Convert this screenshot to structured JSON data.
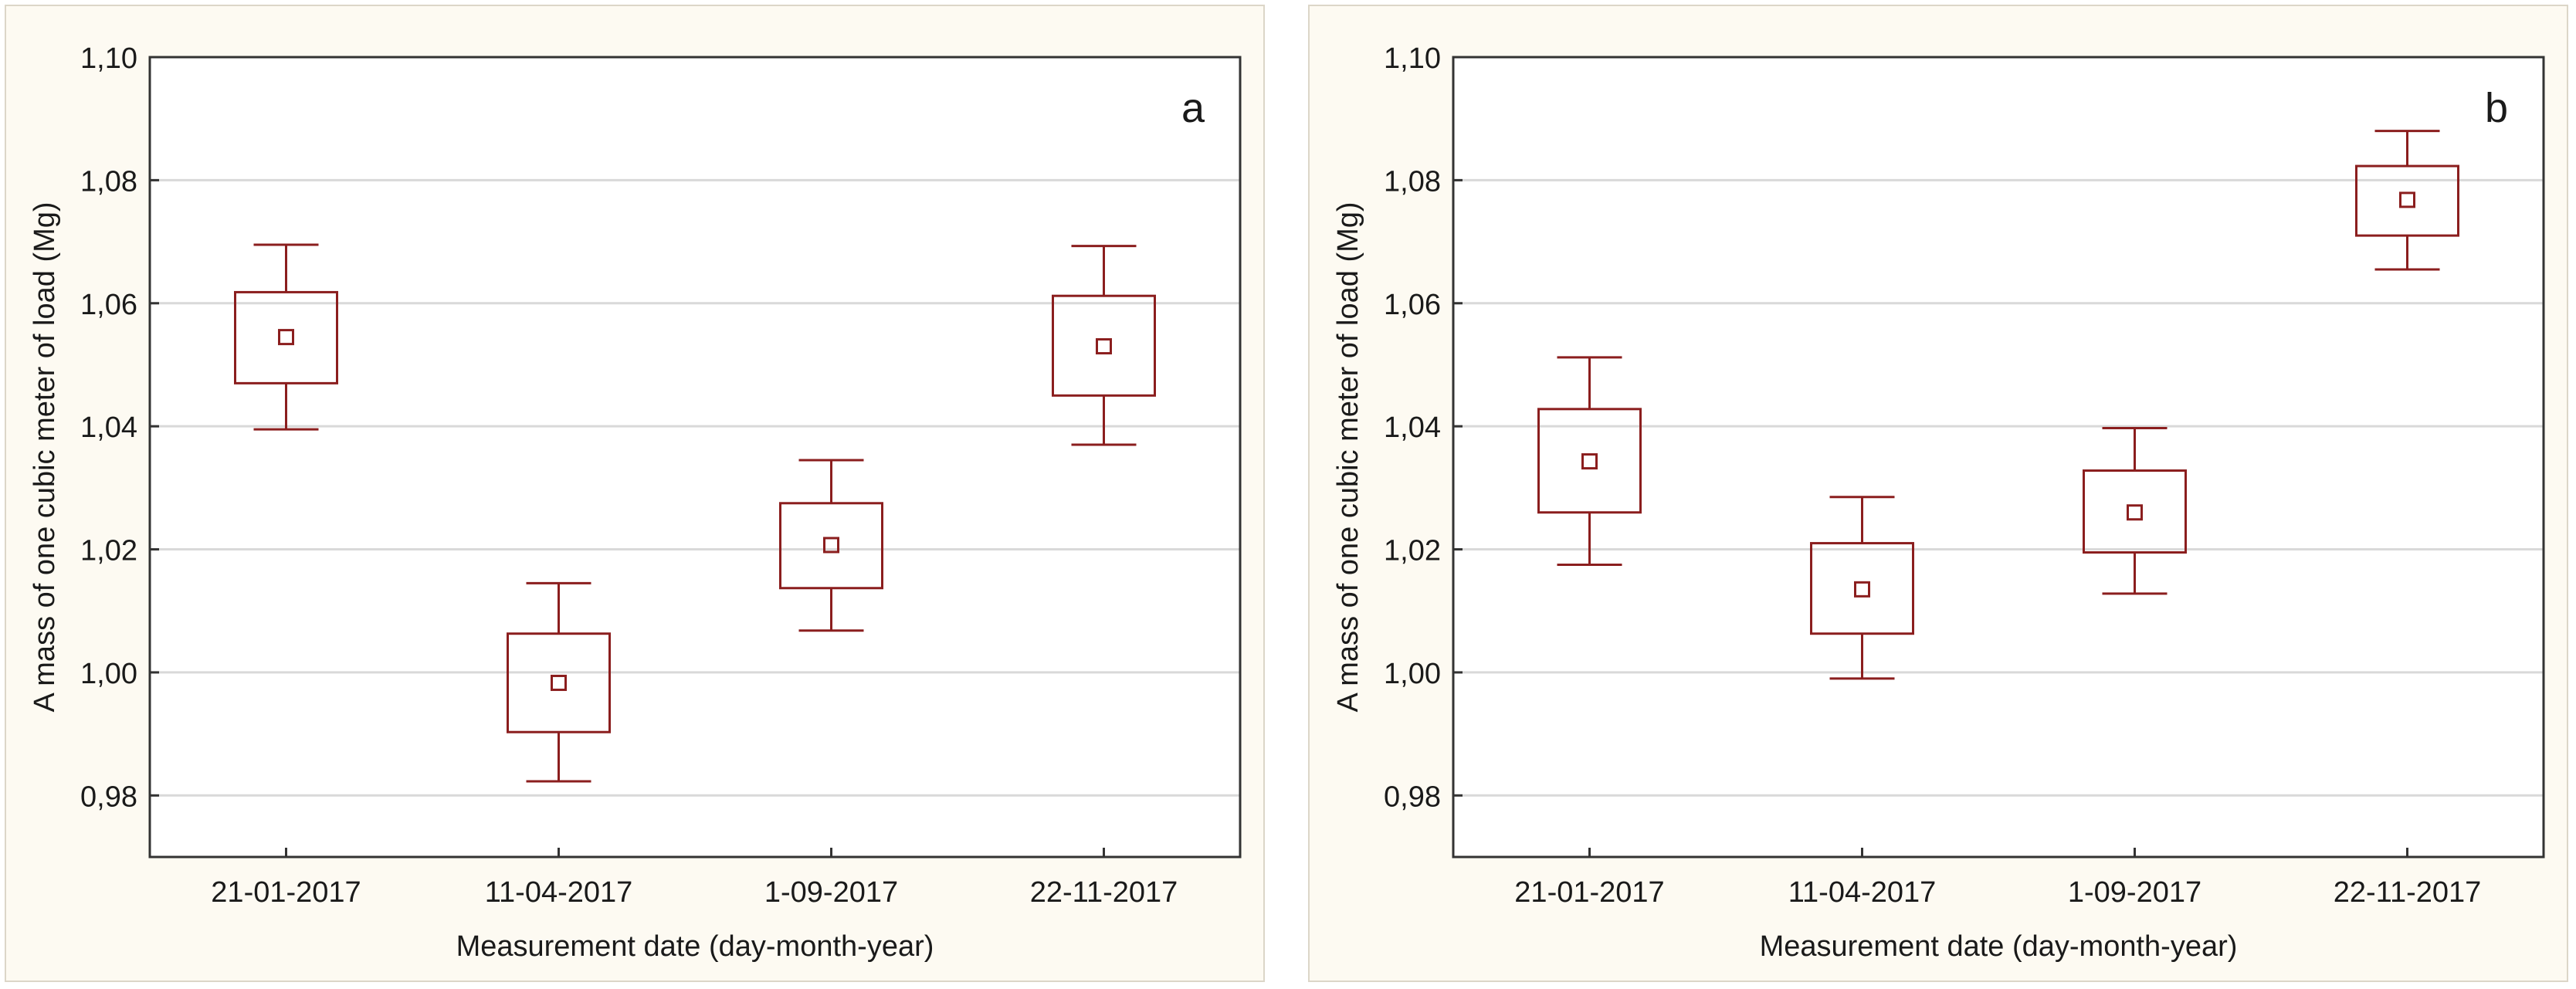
{
  "colors": {
    "box": "#8b1e1e",
    "grid": "#d9d9d9",
    "axis": "#333333",
    "plot_bg": "#ffffff",
    "panel_bg": "#fdfaf2"
  },
  "chart_data": [
    {
      "type": "box",
      "panel_label": "a",
      "xlabel": "Measurement date (day-month-year)",
      "ylabel": "A mass of one cubic meter of load (Mg)",
      "ylim": [
        0.97,
        1.1
      ],
      "yticks": [
        0.98,
        1.0,
        1.02,
        1.04,
        1.06,
        1.08,
        1.1
      ],
      "ytick_labels": [
        "0,98",
        "1,00",
        "1,02",
        "1,04",
        "1,06",
        "1,08",
        "1,10"
      ],
      "grid": true,
      "categories": [
        "21-01-2017",
        "11-04-2017",
        "1-09-2017",
        "22-11-2017"
      ],
      "boxes": [
        {
          "mean": 1.0545,
          "box_low": 1.047,
          "box_high": 1.0618,
          "whisker_low": 1.0395,
          "whisker_high": 1.0695
        },
        {
          "mean": 0.9983,
          "box_low": 0.9903,
          "box_high": 1.0063,
          "whisker_low": 0.9823,
          "whisker_high": 1.0145
        },
        {
          "mean": 1.0207,
          "box_low": 1.0137,
          "box_high": 1.0275,
          "whisker_low": 1.0068,
          "whisker_high": 1.0345
        },
        {
          "mean": 1.053,
          "box_low": 1.045,
          "box_high": 1.0612,
          "whisker_low": 1.037,
          "whisker_high": 1.0693
        }
      ]
    },
    {
      "type": "box",
      "panel_label": "b",
      "xlabel": "Measurement date (day-month-year)",
      "ylabel": "A mass of one cubic meter of load (Mg)",
      "ylim": [
        0.97,
        1.1
      ],
      "yticks": [
        0.98,
        1.0,
        1.02,
        1.04,
        1.06,
        1.08,
        1.1
      ],
      "ytick_labels": [
        "0,98",
        "1,00",
        "1,02",
        "1,04",
        "1,06",
        "1,08",
        "1,10"
      ],
      "grid": true,
      "categories": [
        "21-01-2017",
        "11-04-2017",
        "1-09-2017",
        "22-11-2017"
      ],
      "boxes": [
        {
          "mean": 1.0343,
          "box_low": 1.026,
          "box_high": 1.0428,
          "whisker_low": 1.0175,
          "whisker_high": 1.0512
        },
        {
          "mean": 1.0135,
          "box_low": 1.0063,
          "box_high": 1.021,
          "whisker_low": 0.999,
          "whisker_high": 1.0285
        },
        {
          "mean": 1.026,
          "box_low": 1.0195,
          "box_high": 1.0328,
          "whisker_low": 1.0128,
          "whisker_high": 1.0397
        },
        {
          "mean": 1.0768,
          "box_low": 1.071,
          "box_high": 1.0823,
          "whisker_low": 1.0655,
          "whisker_high": 1.088
        }
      ]
    }
  ]
}
